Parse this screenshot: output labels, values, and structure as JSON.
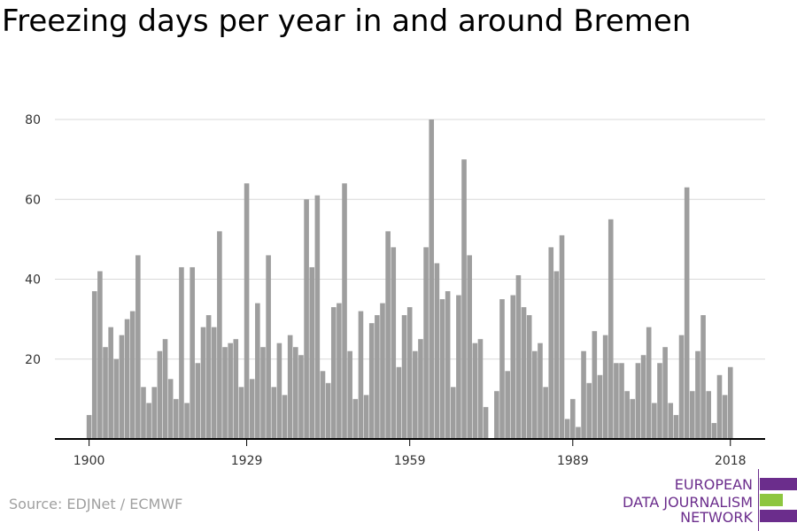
{
  "title": "Freezing days per year in and around Bremen",
  "source": "Source: EDJNet / ECMWF",
  "logo": {
    "lines": [
      "EUROPEAN",
      "DATA JOURNALISM",
      "NETWORK"
    ],
    "colors": {
      "purple": "#6b2d8c",
      "green": "#8dc63f"
    }
  },
  "colors": {
    "bar": "#9e9e9e",
    "grid": "#d9d9d9",
    "axis": "#000000"
  },
  "chart_data": {
    "type": "bar",
    "title": "Freezing days per year in and around Bremen",
    "xlabel": "",
    "ylabel": "",
    "x_tick_labels": [
      "1900",
      "1929",
      "1959",
      "1989",
      "2018"
    ],
    "y_tick_labels": [
      "20",
      "40",
      "60",
      "80"
    ],
    "ylim": [
      0,
      85
    ],
    "grid": true,
    "x": [
      1900,
      1901,
      1902,
      1903,
      1904,
      1905,
      1906,
      1907,
      1908,
      1909,
      1910,
      1911,
      1912,
      1913,
      1914,
      1915,
      1916,
      1917,
      1918,
      1919,
      1920,
      1921,
      1922,
      1923,
      1924,
      1925,
      1926,
      1927,
      1928,
      1929,
      1930,
      1931,
      1932,
      1933,
      1934,
      1935,
      1936,
      1937,
      1938,
      1939,
      1940,
      1941,
      1942,
      1943,
      1944,
      1945,
      1946,
      1947,
      1948,
      1949,
      1950,
      1951,
      1952,
      1953,
      1954,
      1955,
      1956,
      1957,
      1958,
      1959,
      1960,
      1961,
      1962,
      1963,
      1964,
      1965,
      1966,
      1967,
      1968,
      1969,
      1970,
      1971,
      1972,
      1973,
      1974,
      1975,
      1976,
      1977,
      1978,
      1979,
      1980,
      1981,
      1982,
      1983,
      1984,
      1985,
      1986,
      1987,
      1988,
      1989,
      1990,
      1991,
      1992,
      1993,
      1994,
      1995,
      1996,
      1997,
      1998,
      1999,
      2000,
      2001,
      2002,
      2003,
      2004,
      2005,
      2006,
      2007,
      2008,
      2009,
      2010,
      2011,
      2012,
      2013,
      2014,
      2015,
      2016,
      2017,
      2018
    ],
    "values": [
      6,
      37,
      42,
      23,
      28,
      20,
      26,
      30,
      32,
      46,
      13,
      9,
      13,
      22,
      25,
      15,
      10,
      43,
      9,
      43,
      19,
      28,
      31,
      28,
      52,
      23,
      24,
      25,
      13,
      64,
      15,
      34,
      23,
      46,
      13,
      24,
      11,
      26,
      23,
      21,
      60,
      43,
      61,
      17,
      14,
      33,
      34,
      64,
      22,
      10,
      32,
      11,
      29,
      31,
      34,
      52,
      48,
      18,
      31,
      33,
      22,
      25,
      48,
      80,
      44,
      35,
      37,
      13,
      36,
      70,
      46,
      24,
      25,
      8,
      0,
      12,
      35,
      17,
      36,
      41,
      33,
      31,
      22,
      24,
      13,
      48,
      42,
      51,
      5,
      10,
      3,
      22,
      14,
      27,
      16,
      26,
      55,
      19,
      19,
      12,
      10,
      19,
      21,
      28,
      9,
      19,
      23,
      9,
      6,
      26,
      63,
      12,
      22,
      31,
      12,
      4,
      16,
      11,
      18
    ]
  }
}
